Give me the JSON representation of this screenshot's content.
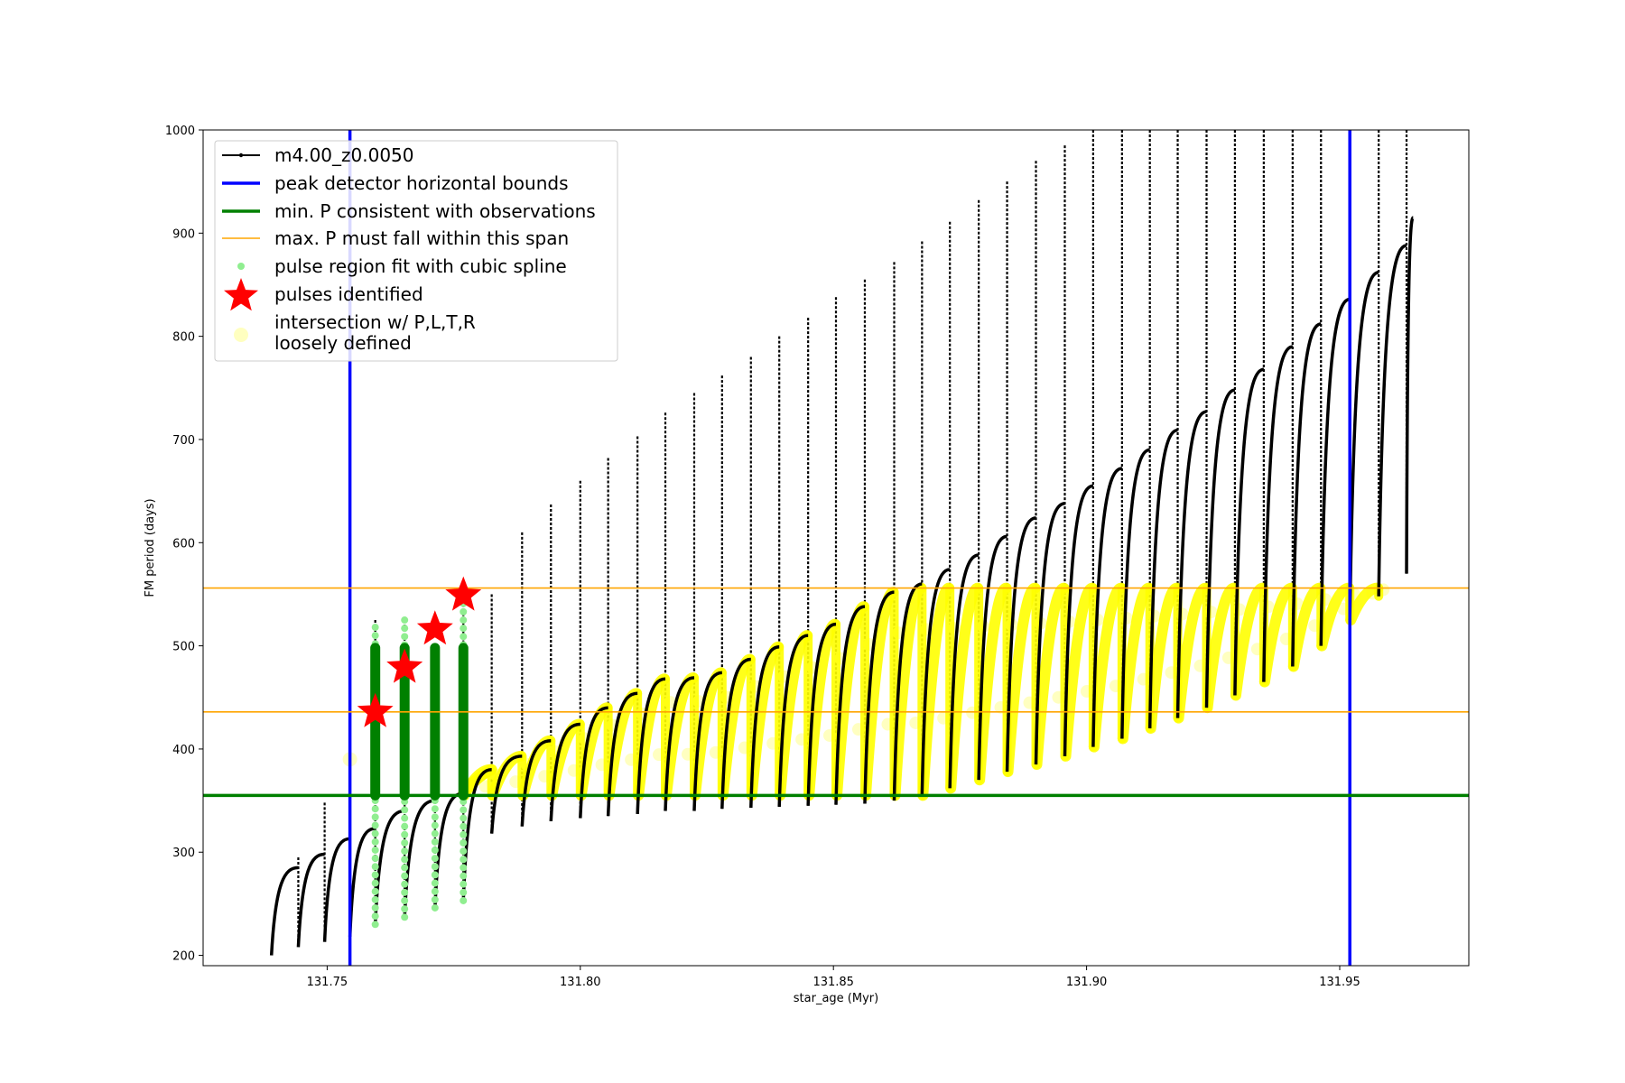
{
  "chart_data": {
    "type": "scatter",
    "xlabel": "star_age (Myr)",
    "ylabel": "FM period (days)",
    "xlim": [
      131.7255,
      131.9755
    ],
    "ylim": [
      190,
      1000
    ],
    "xticks": [
      {
        "value": 131.75,
        "label": "131.75"
      },
      {
        "value": 131.8,
        "label": "131.80"
      },
      {
        "value": 131.85,
        "label": "131.85"
      },
      {
        "value": 131.9,
        "label": "131.90"
      },
      {
        "value": 131.95,
        "label": "131.95"
      }
    ],
    "yticks": [
      {
        "value": 200,
        "label": "200"
      },
      {
        "value": 300,
        "label": "300"
      },
      {
        "value": 400,
        "label": "400"
      },
      {
        "value": 500,
        "label": "500"
      },
      {
        "value": 600,
        "label": "600"
      },
      {
        "value": 700,
        "label": "700"
      },
      {
        "value": 800,
        "label": "800"
      },
      {
        "value": 900,
        "label": "900"
      },
      {
        "value": 1000,
        "label": "1000"
      }
    ],
    "grid": false,
    "legend_position": "top-left",
    "colors": {
      "model": "#000000",
      "bounds": "#0000ff",
      "min_p": "#008000",
      "max_p": "#ffa500",
      "spline": "#90ee90",
      "pulses": "#ff0000",
      "intersection": "#ffff00",
      "loose": "#ffffc0"
    },
    "legend": [
      {
        "key": "model",
        "label": "m4.00_z0.0050",
        "marker": "line-dot"
      },
      {
        "key": "bounds",
        "label": "peak detector horizontal bounds",
        "marker": "line-thick"
      },
      {
        "key": "min_p",
        "label": "min. P consistent with observations",
        "marker": "line-thick"
      },
      {
        "key": "max_p",
        "label": "max. P must fall within this span",
        "marker": "line-thin"
      },
      {
        "key": "spline",
        "label": "pulse region fit with cubic spline",
        "marker": "dot"
      },
      {
        "key": "pulses",
        "label": "pulses identified",
        "marker": "star"
      },
      {
        "key": "intersection",
        "label": "intersection w/ P,L,T,R",
        "label2": "loosely defined",
        "marker": "pale-dot"
      }
    ],
    "vertical_lines": [
      131.7545,
      131.952
    ],
    "min_period_line": 355,
    "max_period_span": [
      436,
      556
    ],
    "model_series": {
      "name": "m4.00_z0.0050",
      "start_age": 131.739,
      "start_period": 200,
      "pulses": [
        {
          "age": 131.7443,
          "top": 285,
          "drop": 208,
          "spike": 295
        },
        {
          "age": 131.7495,
          "top": 298,
          "drop": 213,
          "spike": 348
        },
        {
          "age": 131.7545,
          "top": 313,
          "drop": 218,
          "spike": 395
        },
        {
          "age": 131.7595,
          "top": 323,
          "drop": 230,
          "spike": 525
        },
        {
          "age": 131.7653,
          "top": 340,
          "drop": 237,
          "spike": 525
        },
        {
          "age": 131.7713,
          "top": 350,
          "drop": 246,
          "spike": 498
        },
        {
          "age": 131.7769,
          "top": 357,
          "drop": 253,
          "spike": 549
        },
        {
          "age": 131.7825,
          "top": 380,
          "drop": 318,
          "spike": 550
        },
        {
          "age": 131.7885,
          "top": 393,
          "drop": 325,
          "spike": 610
        },
        {
          "age": 131.7942,
          "top": 408,
          "drop": 330,
          "spike": 637
        },
        {
          "age": 131.8,
          "top": 424,
          "drop": 333,
          "spike": 660
        },
        {
          "age": 131.8055,
          "top": 440,
          "drop": 335,
          "spike": 682
        },
        {
          "age": 131.8113,
          "top": 454,
          "drop": 337,
          "spike": 703
        },
        {
          "age": 131.8168,
          "top": 468,
          "drop": 340,
          "spike": 726
        },
        {
          "age": 131.8225,
          "top": 469,
          "drop": 340,
          "spike": 745
        },
        {
          "age": 131.828,
          "top": 474,
          "drop": 342,
          "spike": 762
        },
        {
          "age": 131.8337,
          "top": 487,
          "drop": 343,
          "spike": 780
        },
        {
          "age": 131.8393,
          "top": 499,
          "drop": 344,
          "spike": 800
        },
        {
          "age": 131.845,
          "top": 510,
          "drop": 345,
          "spike": 818
        },
        {
          "age": 131.8505,
          "top": 521,
          "drop": 346,
          "spike": 838
        },
        {
          "age": 131.8562,
          "top": 538,
          "drop": 347,
          "spike": 855
        },
        {
          "age": 131.862,
          "top": 552,
          "drop": 350,
          "spike": 872
        },
        {
          "age": 131.8675,
          "top": 560,
          "drop": 355,
          "spike": 892
        },
        {
          "age": 131.873,
          "top": 574,
          "drop": 362,
          "spike": 911
        },
        {
          "age": 131.8787,
          "top": 588,
          "drop": 370,
          "spike": 932
        },
        {
          "age": 131.8843,
          "top": 606,
          "drop": 378,
          "spike": 950
        },
        {
          "age": 131.89,
          "top": 624,
          "drop": 385,
          "spike": 970
        },
        {
          "age": 131.8957,
          "top": 638,
          "drop": 393,
          "spike": 985
        },
        {
          "age": 131.9013,
          "top": 655,
          "drop": 402,
          "spike": 1000
        },
        {
          "age": 131.907,
          "top": 672,
          "drop": 410,
          "spike": 1000
        },
        {
          "age": 131.9125,
          "top": 690,
          "drop": 420,
          "spike": 1000
        },
        {
          "age": 131.918,
          "top": 709,
          "drop": 430,
          "spike": 1000
        },
        {
          "age": 131.9237,
          "top": 727,
          "drop": 440,
          "spike": 1000
        },
        {
          "age": 131.9293,
          "top": 748,
          "drop": 452,
          "spike": 1000
        },
        {
          "age": 131.935,
          "top": 768,
          "drop": 465,
          "spike": 1000
        },
        {
          "age": 131.9407,
          "top": 790,
          "drop": 480,
          "spike": 1000
        },
        {
          "age": 131.9463,
          "top": 812,
          "drop": 500,
          "spike": 1000
        },
        {
          "age": 131.952,
          "top": 836,
          "drop": 525,
          "spike": 1000
        },
        {
          "age": 131.9577,
          "top": 862,
          "drop": 548,
          "spike": 1000
        },
        {
          "age": 131.9632,
          "top": 888,
          "drop": 570,
          "spike": 1000
        }
      ],
      "end_age": 131.9645,
      "end_period": 915
    },
    "spline_columns": [
      {
        "age": 131.7595,
        "min": 230,
        "max": 525
      },
      {
        "age": 131.7653,
        "min": 237,
        "max": 525
      },
      {
        "age": 131.7713,
        "min": 246,
        "max": 498
      },
      {
        "age": 131.7769,
        "min": 253,
        "max": 549
      }
    ],
    "fit_columns": [
      {
        "age": 131.7595,
        "min": 355,
        "max": 498
      },
      {
        "age": 131.7653,
        "min": 355,
        "max": 498
      },
      {
        "age": 131.7713,
        "min": 355,
        "max": 498
      },
      {
        "age": 131.7769,
        "min": 355,
        "max": 498
      }
    ],
    "pulses_identified": [
      {
        "age": 131.7595,
        "period": 436
      },
      {
        "age": 131.7653,
        "period": 479
      },
      {
        "age": 131.7713,
        "period": 516
      },
      {
        "age": 131.7769,
        "period": 549
      }
    ]
  }
}
